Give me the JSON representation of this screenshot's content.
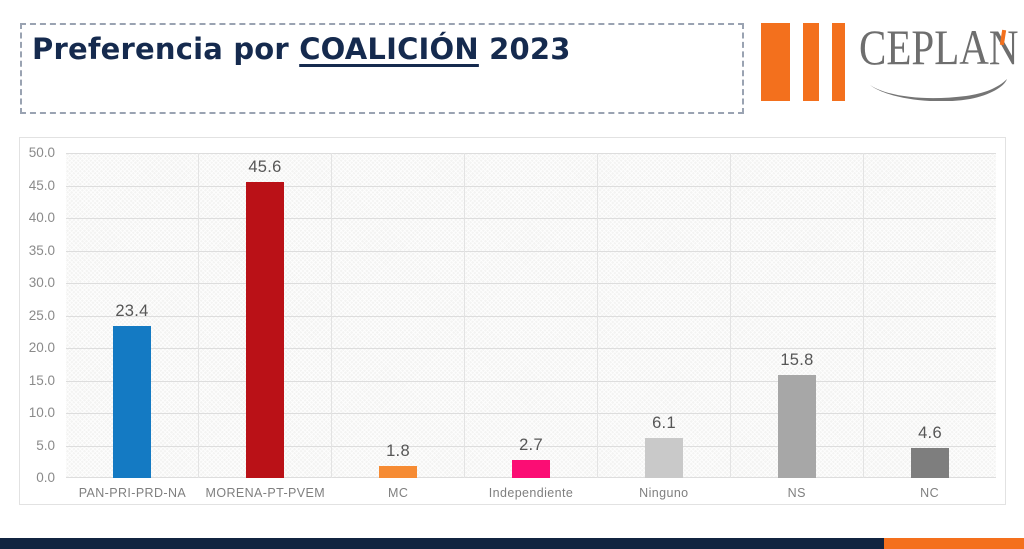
{
  "title": {
    "prefix": "Preferencia por ",
    "underlined": "COALICIÓN",
    "suffix": " 2023"
  },
  "logo": {
    "name": "CEPLAN",
    "brand_orange": "#F3701D",
    "text_gray": "#6E6E6E",
    "swoosh_gray": "#757575"
  },
  "chart_data": {
    "type": "bar",
    "title": "Preferencia por COALICIÓN 2023",
    "categories": [
      "PAN-PRI-PRD-NA",
      "MORENA-PT-PVEM",
      "MC",
      "Independiente",
      "Ninguno",
      "NS",
      "NC"
    ],
    "values": [
      23.4,
      45.6,
      1.8,
      2.7,
      6.1,
      15.8,
      4.6
    ],
    "value_labels": [
      "23.4",
      "45.6",
      "1.8",
      "2.7",
      "6.1",
      "15.8",
      "4.6"
    ],
    "bar_colors": [
      "#147AC3",
      "#BA1117",
      "#F68B33",
      "#FB0D74",
      "#C9C9C9",
      "#A7A7A7",
      "#7E7E7E"
    ],
    "ylim": [
      0,
      50
    ],
    "ytick_values": [
      0,
      5,
      10,
      15,
      20,
      25,
      30,
      35,
      40,
      45,
      50
    ],
    "ytick_labels": [
      "0.0",
      "5.0",
      "10.0",
      "15.0",
      "20.0",
      "25.0",
      "30.0",
      "35.0",
      "40.0",
      "45.0",
      "50.0"
    ],
    "grid": "horizontal and vertical gridlines",
    "legend": "none",
    "xlabel": "",
    "ylabel": "",
    "plot_background": "light gray diagonal crosshatch"
  },
  "footer": {
    "navy": "#112440",
    "orange": "#F4701D",
    "navy_width_pct": 86.3
  }
}
